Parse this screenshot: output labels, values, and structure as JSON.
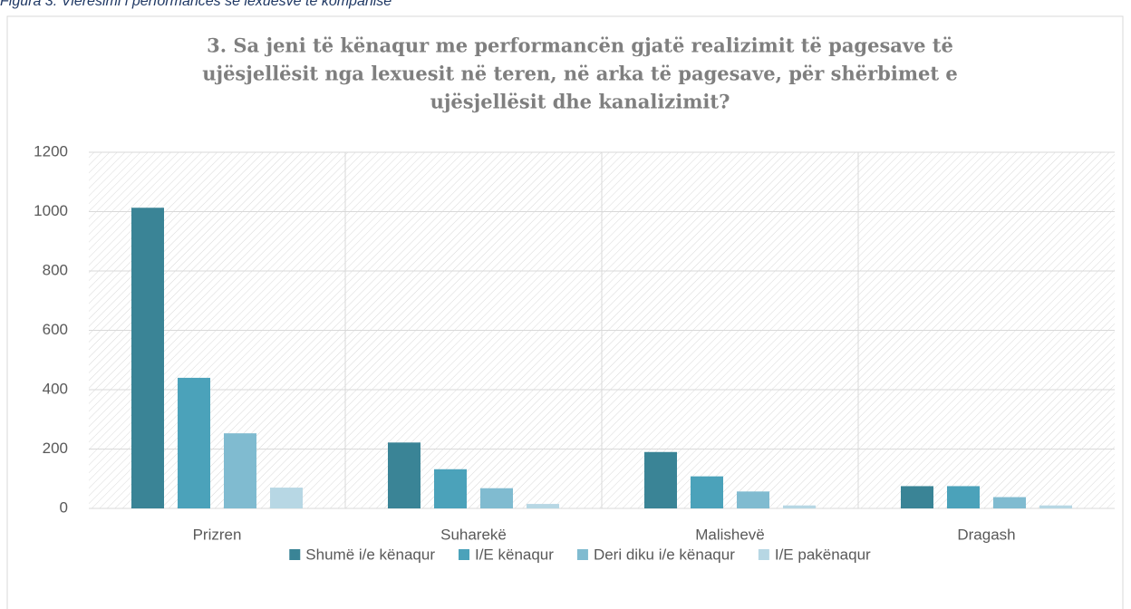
{
  "caption": "Figura 3. Vlerësimi i performancës së lexuesve të kompanisë",
  "chart_data": {
    "type": "bar",
    "title": [
      "3. Sa jeni të kënaqur me performancën gjatë realizimit të pagesave të",
      "ujësjellësit nga lexuesit në teren, në arka të pagesave, për shërbimet e",
      "ujësjellësit dhe kanalizimit?"
    ],
    "categories": [
      "Prizren",
      "Suharekë",
      "Malishevë",
      "Dragash"
    ],
    "series": [
      {
        "name": "Shumë i/e kënaqur",
        "color": "#3a8496",
        "values": [
          1013,
          222,
          190,
          75
        ]
      },
      {
        "name": "I/E kënaqur",
        "color": "#4ba2ba",
        "values": [
          440,
          132,
          108,
          75
        ]
      },
      {
        "name": "Deri diku i/e kënaqur",
        "color": "#80bbd0",
        "values": [
          253,
          68,
          57,
          38
        ]
      },
      {
        "name": "I/E pakënaqur",
        "color": "#b7d7e4",
        "values": [
          70,
          15,
          10,
          10
        ]
      }
    ],
    "ylim": [
      0,
      1200
    ],
    "yticks": [
      0,
      200,
      400,
      600,
      800,
      1000,
      1200
    ],
    "grid": true,
    "legend": "bottom"
  }
}
